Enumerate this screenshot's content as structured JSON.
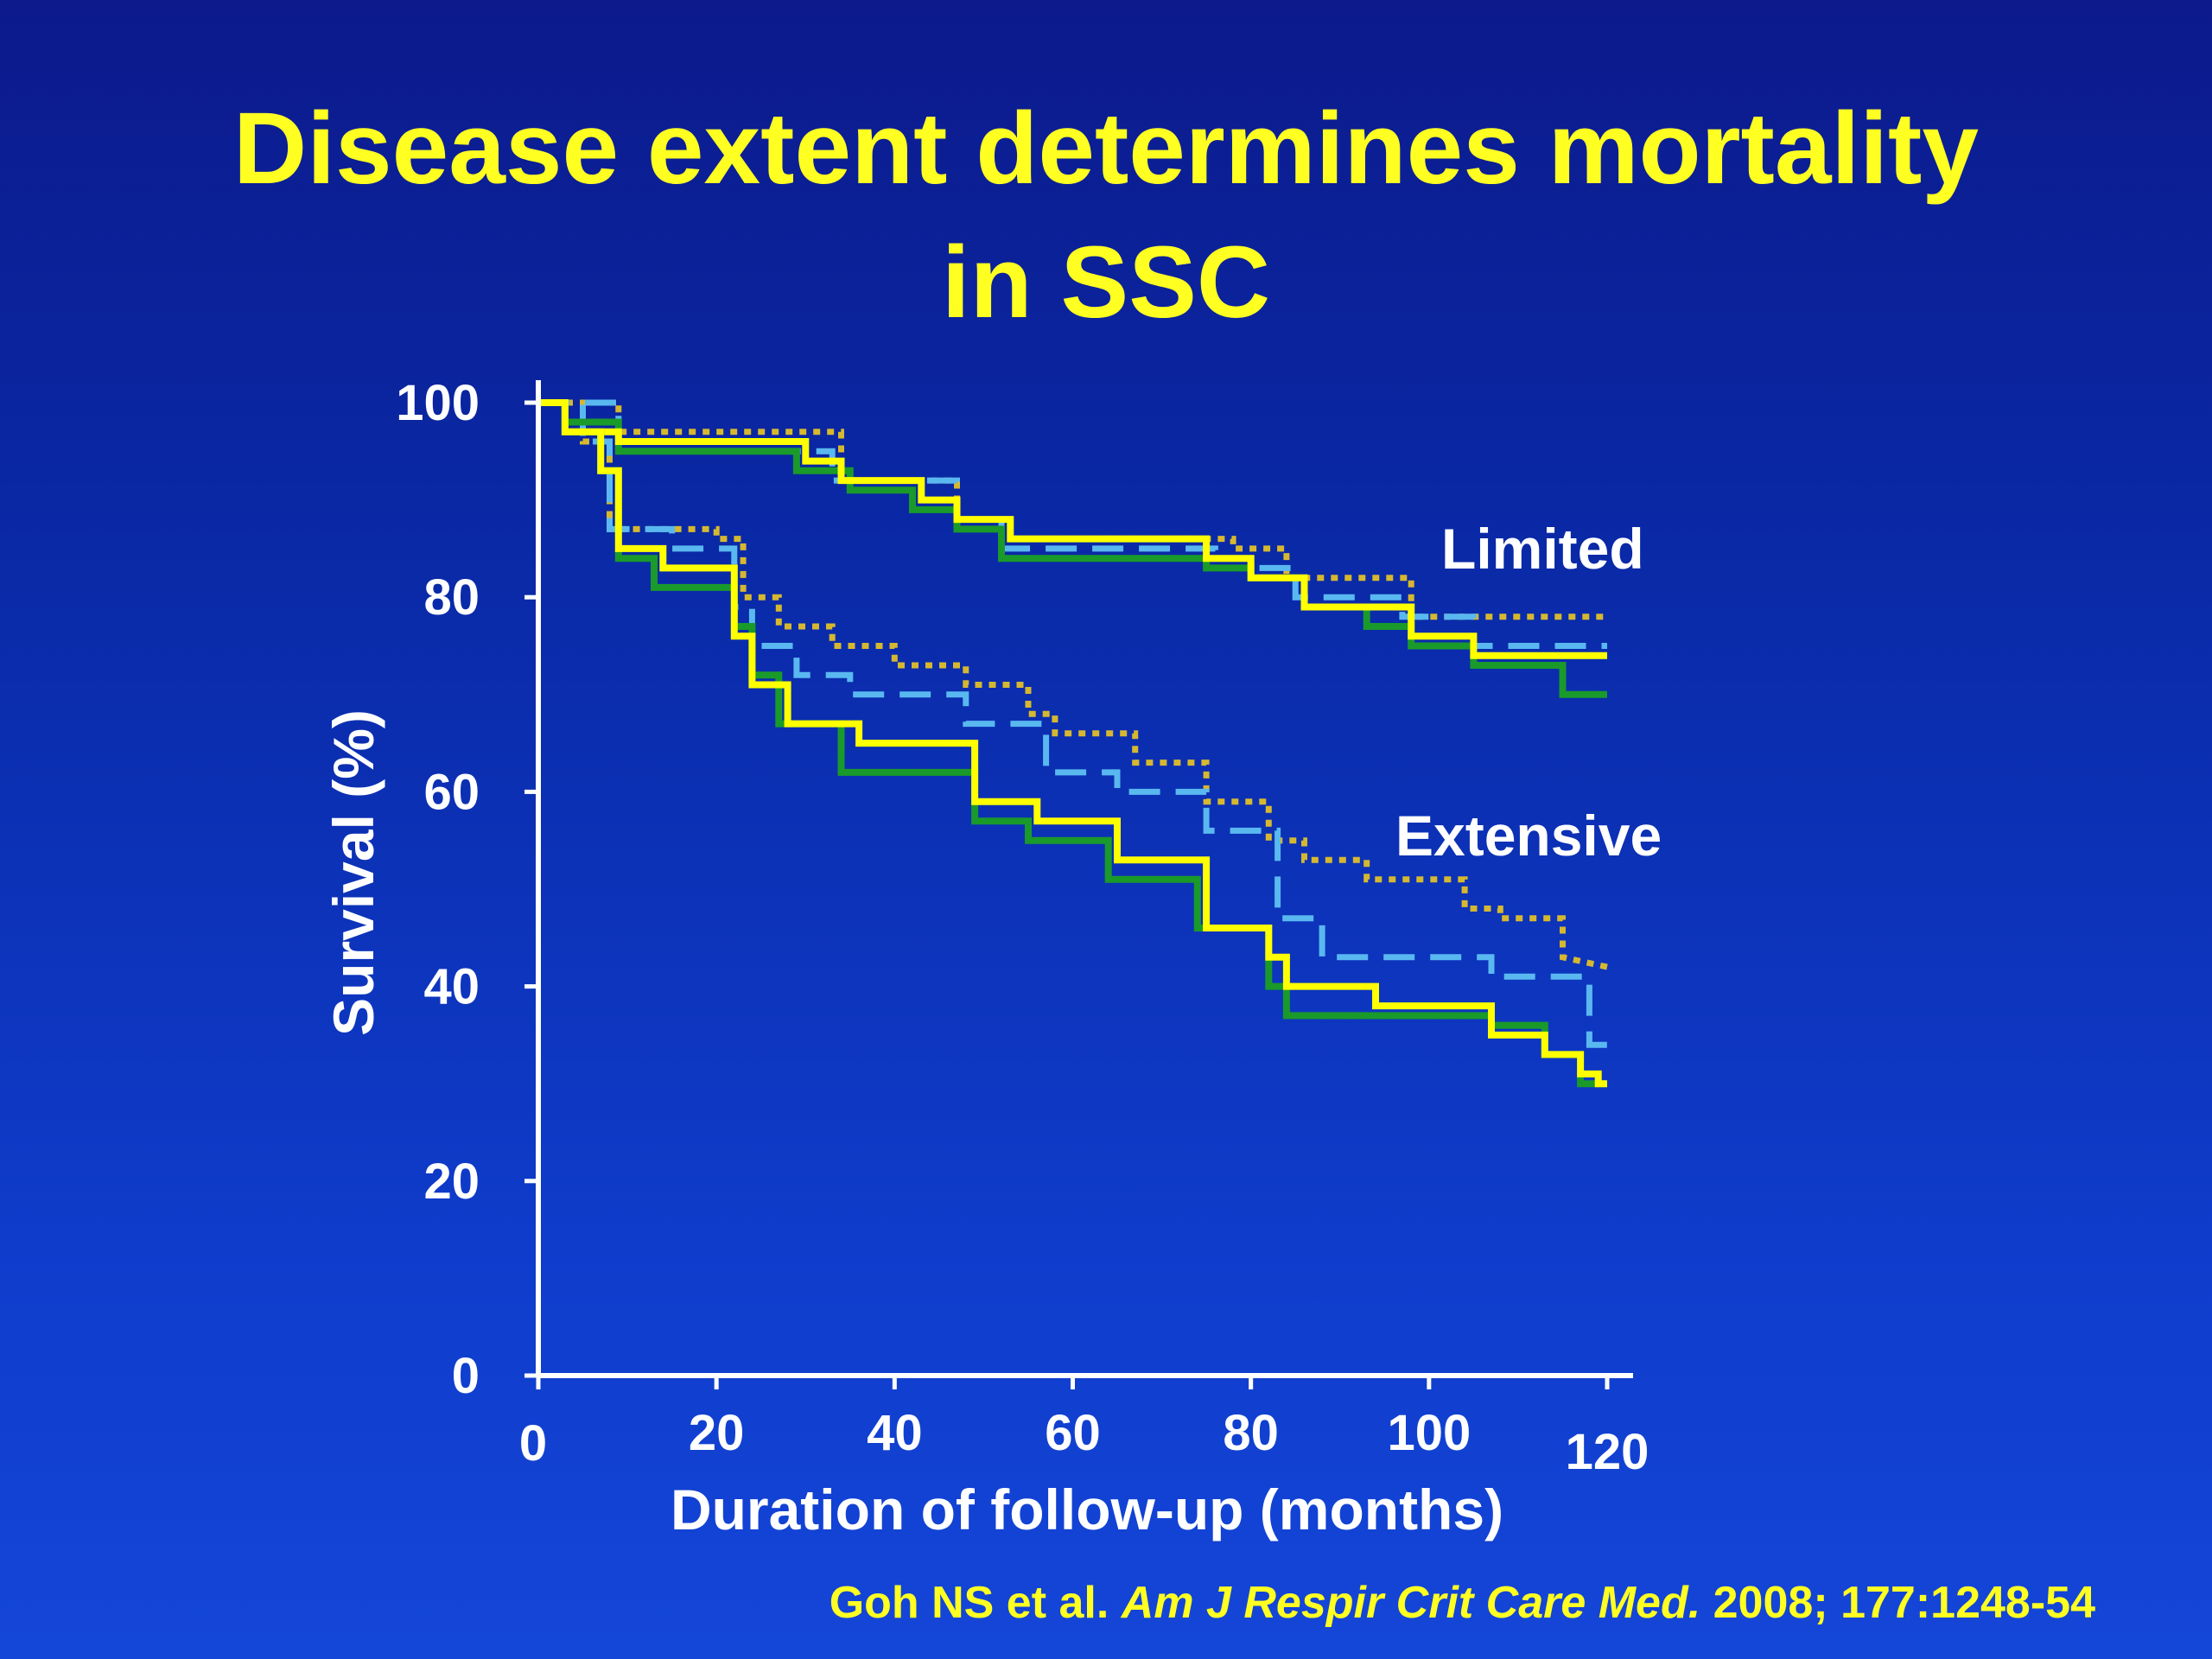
{
  "slide": {
    "title_line1": "Disease extent determines mortality",
    "title_line2": "in SSC",
    "citation_authors": "Goh NS et al",
    "citation_dot": ".",
    "citation_journal": "Am J Respir Crit Care Med.",
    "citation_rest": "2008; 177:1248-54"
  },
  "colors": {
    "title": "#ffff22",
    "axis": "#ffffff",
    "yellow_solid": "#ffff00",
    "green_solid": "#1a9a2a",
    "blue_dashed": "#5ab8f0",
    "gold_dotted": "#d6b830"
  },
  "chart_data": {
    "type": "line",
    "subtype": "kaplan-meier step curves",
    "title": "",
    "xlabel": "Duration of follow-up (months)",
    "ylabel": "Survival (%)",
    "xlim": [
      0,
      120
    ],
    "ylim": [
      0,
      100
    ],
    "xticks": [
      0,
      20,
      40,
      60,
      80,
      100,
      120
    ],
    "yticks": [
      0,
      20,
      40,
      60,
      80,
      100
    ],
    "grid": false,
    "legend": "none",
    "annotations": [
      {
        "text": "Limited",
        "group": "limited"
      },
      {
        "text": "Extensive",
        "group": "extensive"
      }
    ],
    "series": [
      {
        "group": "limited",
        "style": "dotted",
        "color": "gold_dotted",
        "x": [
          0,
          9,
          9,
          34,
          34,
          47,
          47,
          53,
          53,
          63,
          63,
          78,
          78,
          84,
          84,
          98,
          98,
          120
        ],
        "y": [
          100,
          100,
          97,
          97,
          92,
          92,
          88,
          88,
          86,
          86,
          86,
          86,
          85,
          85,
          82,
          82,
          78,
          78
        ]
      },
      {
        "group": "limited",
        "style": "dashed",
        "color": "blue_dashed",
        "x": [
          0,
          9,
          9,
          33,
          33,
          47,
          47,
          52,
          52,
          76,
          76,
          85,
          85,
          97,
          97,
          105,
          105,
          120
        ],
        "y": [
          100,
          100,
          95,
          95,
          92,
          92,
          88,
          88,
          85,
          85,
          83,
          83,
          80,
          80,
          78,
          78,
          75,
          75
        ]
      },
      {
        "group": "limited",
        "style": "solid",
        "color": "green_solid",
        "x": [
          0,
          3,
          3,
          9,
          9,
          29,
          29,
          35,
          35,
          42,
          42,
          47,
          47,
          52,
          52,
          75,
          75,
          80,
          80,
          86,
          86,
          93,
          93,
          98,
          98,
          105,
          105,
          115,
          115,
          120
        ],
        "y": [
          100,
          100,
          98,
          98,
          95,
          95,
          93,
          93,
          91,
          91,
          89,
          89,
          87,
          87,
          84,
          84,
          83,
          83,
          82,
          82,
          79,
          79,
          77,
          77,
          75,
          75,
          73,
          73,
          70,
          70
        ]
      },
      {
        "group": "limited",
        "style": "solid",
        "color": "yellow_solid",
        "x": [
          0,
          3,
          3,
          9,
          9,
          30,
          30,
          34,
          34,
          43,
          43,
          47,
          47,
          53,
          53,
          75,
          75,
          80,
          80,
          86,
          86,
          98,
          98,
          105,
          105,
          120
        ],
        "y": [
          100,
          100,
          97,
          97,
          96,
          96,
          94,
          94,
          92,
          92,
          90,
          90,
          88,
          88,
          86,
          86,
          84,
          84,
          82,
          82,
          79,
          79,
          76,
          76,
          74,
          74
        ]
      },
      {
        "group": "extensive",
        "style": "dotted",
        "color": "gold_dotted",
        "x": [
          0,
          5,
          5,
          8,
          8,
          20,
          20,
          23,
          23,
          27,
          27,
          33,
          33,
          40,
          40,
          48,
          48,
          55,
          55,
          58,
          58,
          67,
          67,
          75,
          75,
          82,
          82,
          86,
          86,
          93,
          93,
          104,
          104,
          108,
          108,
          115,
          115,
          120
        ],
        "y": [
          100,
          100,
          96,
          96,
          87,
          87,
          86,
          86,
          80,
          80,
          77,
          77,
          75,
          75,
          73,
          73,
          71,
          71,
          68,
          68,
          66,
          66,
          63,
          63,
          59,
          59,
          55,
          55,
          53,
          53,
          51,
          51,
          48,
          48,
          47,
          47,
          43,
          42
        ]
      },
      {
        "group": "extensive",
        "style": "dashed",
        "color": "blue_dashed",
        "x": [
          0,
          5,
          5,
          8,
          8,
          15,
          15,
          22,
          22,
          24,
          24,
          29,
          29,
          35,
          35,
          48,
          48,
          57,
          57,
          65,
          65,
          75,
          75,
          83,
          83,
          88,
          88,
          107,
          107,
          118,
          118,
          120
        ],
        "y": [
          100,
          100,
          96,
          96,
          87,
          87,
          85,
          85,
          79,
          79,
          75,
          75,
          72,
          72,
          70,
          70,
          67,
          67,
          62,
          62,
          60,
          60,
          56,
          56,
          47,
          47,
          43,
          43,
          41,
          41,
          34,
          34
        ]
      },
      {
        "group": "extensive",
        "style": "solid",
        "color": "green_solid",
        "x": [
          0,
          3,
          3,
          7,
          7,
          9,
          9,
          13,
          13,
          22,
          22,
          24,
          24,
          27,
          27,
          34,
          34,
          49,
          49,
          55,
          55,
          64,
          64,
          74,
          74,
          82,
          82,
          84,
          84,
          107,
          107,
          113,
          113,
          117,
          117,
          120
        ],
        "y": [
          100,
          100,
          97,
          97,
          93,
          93,
          84,
          84,
          81,
          81,
          77,
          77,
          72,
          72,
          67,
          67,
          62,
          62,
          57,
          57,
          55,
          55,
          51,
          51,
          46,
          46,
          40,
          40,
          37,
          37,
          36,
          36,
          33,
          33,
          30,
          30
        ]
      },
      {
        "group": "extensive",
        "style": "solid",
        "color": "yellow_solid",
        "x": [
          0,
          3,
          3,
          7,
          7,
          9,
          9,
          14,
          14,
          22,
          22,
          24,
          24,
          28,
          28,
          36,
          36,
          49,
          49,
          56,
          56,
          65,
          65,
          75,
          75,
          82,
          82,
          84,
          84,
          94,
          94,
          107,
          107,
          113,
          113,
          117,
          117,
          119,
          119,
          120
        ],
        "y": [
          100,
          100,
          97,
          97,
          93,
          93,
          85,
          85,
          83,
          83,
          76,
          76,
          71,
          71,
          67,
          67,
          65,
          65,
          59,
          59,
          57,
          57,
          53,
          53,
          46,
          46,
          43,
          43,
          40,
          40,
          38,
          38,
          35,
          35,
          33,
          33,
          31,
          31,
          30,
          30
        ]
      }
    ]
  }
}
